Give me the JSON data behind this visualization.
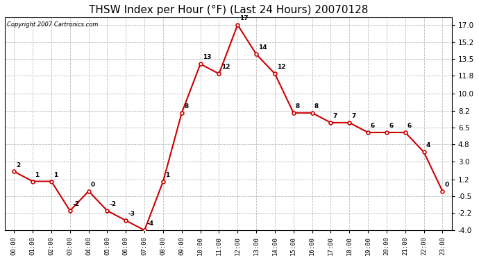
{
  "title": "THSW Index per Hour (°F) (Last 24 Hours) 20070128",
  "copyright": "Copyright 2007 Cartronics.com",
  "hours": [
    "00:00",
    "01:00",
    "02:00",
    "03:00",
    "04:00",
    "05:00",
    "06:00",
    "07:00",
    "08:00",
    "09:00",
    "10:00",
    "11:00",
    "12:00",
    "13:00",
    "14:00",
    "15:00",
    "16:00",
    "17:00",
    "18:00",
    "19:00",
    "20:00",
    "21:00",
    "22:00",
    "23:00"
  ],
  "values": [
    2,
    1,
    1,
    -2,
    0,
    -2,
    -3,
    -4,
    1,
    8,
    13,
    12,
    17,
    14,
    12,
    8,
    8,
    7,
    7,
    6,
    6,
    6,
    4,
    0
  ],
  "yticks": [
    17.0,
    15.2,
    13.5,
    11.8,
    10.0,
    8.2,
    6.5,
    4.8,
    3.0,
    1.2,
    -0.5,
    -2.2,
    -4.0
  ],
  "line_color": "#cc0000",
  "marker_color": "#cc0000",
  "bg_color": "#ffffff",
  "grid_color": "#bbbbbb",
  "title_fontsize": 11,
  "ylim_min": -4.0,
  "ylim_max": 17.8
}
